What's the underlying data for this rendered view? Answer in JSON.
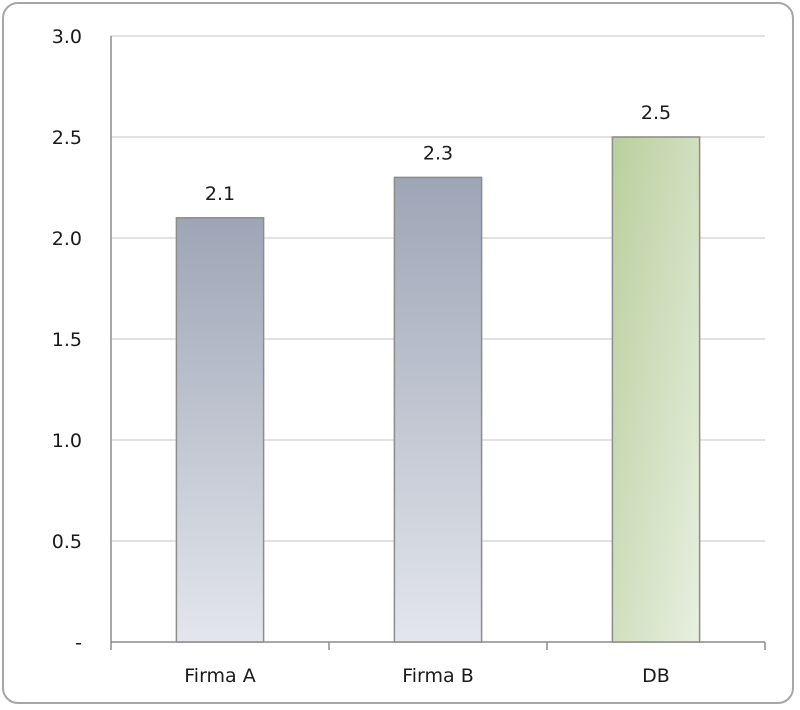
{
  "chart_data": {
    "type": "bar",
    "title": "",
    "xlabel": "",
    "ylabel": "",
    "categories": [
      "Firma A",
      "Firma B",
      "DB"
    ],
    "values": [
      2.1,
      2.3,
      2.5
    ],
    "data_labels": [
      "2.1",
      "2.3",
      "2.5"
    ],
    "ylim": [
      0,
      3
    ],
    "y_ticks": [
      0,
      0.5,
      1.0,
      1.5,
      2.0,
      2.5,
      3.0
    ],
    "y_tick_labels": [
      "-",
      "0.5",
      "1.0",
      "1.5",
      "2.0",
      "2.5",
      "3.0"
    ],
    "grid": true,
    "legend": "none",
    "colors": {
      "bar_default_top": "#9ea5b6",
      "bar_default_bottom": "#e3e6ec",
      "bar_highlight_top": "#b9cf9d",
      "bar_highlight_bottom": "#e8efe0",
      "bar_border": "#8c8c8c",
      "gridline": "#d9d9d9",
      "axis": "#8c8c8c"
    },
    "highlight_category": "DB"
  }
}
